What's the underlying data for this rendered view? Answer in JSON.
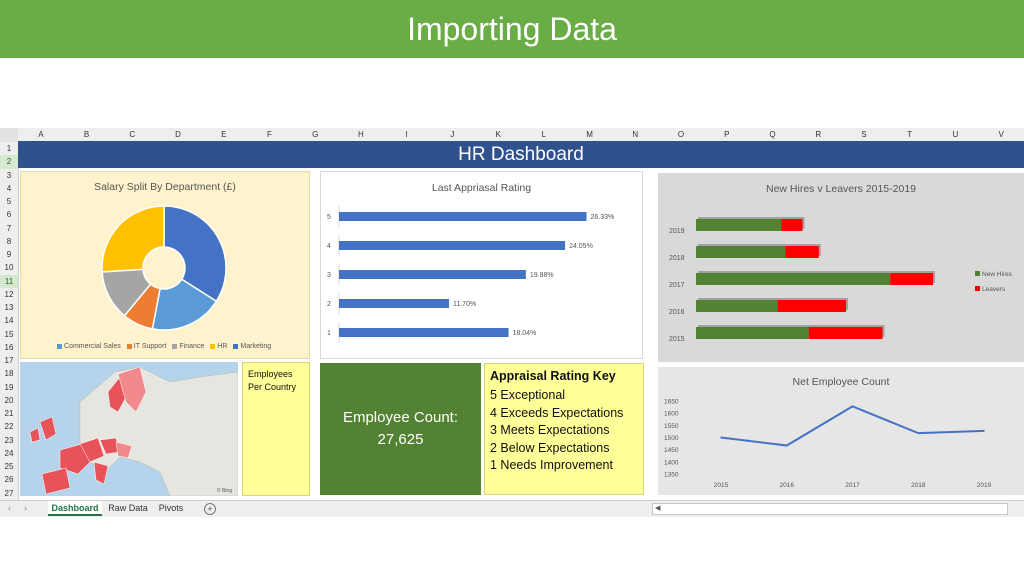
{
  "slide": {
    "title": "Importing Data"
  },
  "sheet": {
    "columns": [
      "A",
      "B",
      "C",
      "D",
      "E",
      "F",
      "G",
      "H",
      "I",
      "J",
      "K",
      "L",
      "M",
      "N",
      "O",
      "P",
      "Q",
      "R",
      "S",
      "T",
      "U",
      "V"
    ],
    "rows": [
      "1",
      "2",
      "3",
      "4",
      "5",
      "6",
      "7",
      "8",
      "9",
      "10",
      "11",
      "12",
      "13",
      "14",
      "15",
      "16",
      "17",
      "18",
      "19",
      "20",
      "21",
      "22",
      "23",
      "24",
      "25",
      "26",
      "27"
    ],
    "selected_rows": [
      "2",
      "11"
    ],
    "tabs": [
      "Dashboard",
      "Raw Data",
      "Pivots"
    ],
    "active_tab": "Dashboard",
    "add_sheet_icon": "plus-circle-icon",
    "nav_left_icon": "chevron-left-icon",
    "nav_right_icon": "chevron-right-icon"
  },
  "dashboard": {
    "title": "HR Dashboard",
    "map_label": "Employees Per Country",
    "map_copyright": "© Bing",
    "employee_count_label": "Employee Count:",
    "employee_count_value": "27,625",
    "appraisal_key": {
      "title": "Appraisal Rating Key",
      "items": [
        "5 Exceptional",
        "4 Exceeds Expectations",
        "3 Meets Expectations",
        "2 Below Expectations",
        "1 Needs Improvement"
      ]
    },
    "colors": {
      "banner": "#2f528f",
      "title_bar": "#6aac46",
      "salary_bg": "#fff2cc",
      "count_bg": "#548235",
      "key_bg": "#ffff99",
      "grey_panel": "#d9d9d9",
      "bar_blue": "#4472c4",
      "hires_green": "#548235",
      "leavers_red": "#ff0000",
      "map_red": "#e8535a"
    }
  },
  "chart_data": [
    {
      "type": "pie",
      "title": "Salary Split By Department (£)",
      "categories": [
        "Marketing",
        "Commercial Sales",
        "IT Support",
        "Finance",
        "HR"
      ],
      "values": [
        34,
        19,
        8,
        13,
        26
      ],
      "colors": [
        "#4472c4",
        "#5b9bd5",
        "#ed7d31",
        "#a5a5a5",
        "#ffc000"
      ],
      "legend_order": [
        "Commercial Sales",
        "IT Support",
        "Finance",
        "HR",
        "Marketing"
      ],
      "legend_colors": [
        "#5b9bd5",
        "#ed7d31",
        "#a5a5a5",
        "#ffc000",
        "#4472c4"
      ],
      "legend_placement": "bottom",
      "donut": true
    },
    {
      "type": "bar",
      "orientation": "horizontal",
      "title": "Last Appriasal Rating",
      "categories": [
        "5",
        "4",
        "3",
        "2",
        "1"
      ],
      "values": [
        26.33,
        24.05,
        19.88,
        11.7,
        18.04
      ],
      "labels": [
        "26.33%",
        "24.05%",
        "19.88%",
        "11.70%",
        "18.04%"
      ],
      "xlim": [
        0,
        30
      ],
      "color": "#4472c4"
    },
    {
      "type": "bar",
      "orientation": "horizontal",
      "stacked": true,
      "title": "New Hires v Leavers 2015-2019",
      "categories": [
        "2019",
        "2018",
        "2017",
        "2016",
        "2015"
      ],
      "series": [
        {
          "name": "New Hires",
          "values": [
            1100,
            1150,
            2500,
            1050,
            1450
          ],
          "color": "#548235"
        },
        {
          "name": "Leavers",
          "values": [
            270,
            430,
            550,
            880,
            950
          ],
          "color": "#ff0000"
        }
      ],
      "xlim": [
        0,
        3500
      ],
      "legend_placement": "right"
    },
    {
      "type": "line",
      "title": "Net Employee Count",
      "x": [
        "2015",
        "2016",
        "2017",
        "2018",
        "2019"
      ],
      "values": [
        1500,
        1467,
        1628,
        1518,
        1527
      ],
      "y_ticks": [
        "1650",
        "1600",
        "1550",
        "1500",
        "1450",
        "1400",
        "1350"
      ],
      "ylim": [
        1350,
        1650
      ],
      "color": "#4472c4"
    }
  ]
}
